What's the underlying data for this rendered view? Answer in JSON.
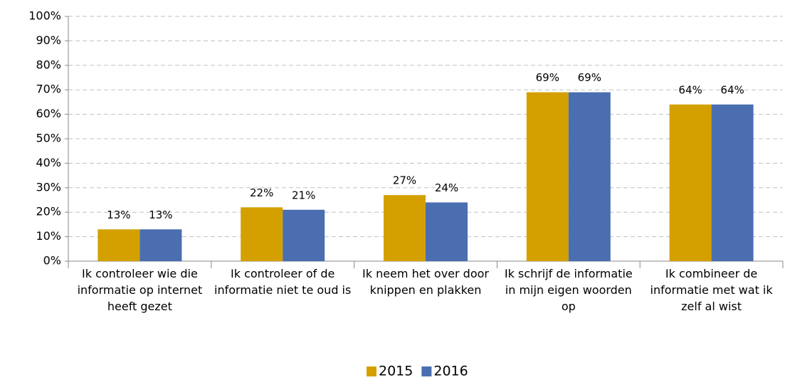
{
  "chart_data": {
    "type": "bar",
    "categories": [
      "Ik controleer wie die informatie op internet heeft gezet",
      "Ik controleer of de informatie niet te oud is",
      "Ik neem het over door knippen en plakken",
      "Ik schrijf de informatie in mijn eigen woorden op",
      "Ik combineer de informatie met wat ik zelf al wist"
    ],
    "series": [
      {
        "name": "2015",
        "color": "#d4a000",
        "values": [
          13,
          22,
          27,
          69,
          64
        ],
        "value_labels": [
          "13%",
          "22%",
          "27%",
          "69%",
          "64%"
        ]
      },
      {
        "name": "2016",
        "color": "#4a6eb0",
        "values": [
          13,
          21,
          24,
          69,
          64
        ],
        "value_labels": [
          "13%",
          "21%",
          "24%",
          "69%",
          "64%"
        ]
      }
    ],
    "ylim": [
      0,
      100
    ],
    "yticks": [
      {
        "value": 0,
        "label": "0%"
      },
      {
        "value": 10,
        "label": "10%"
      },
      {
        "value": 20,
        "label": "20%"
      },
      {
        "value": 30,
        "label": "30%"
      },
      {
        "value": 40,
        "label": "40%"
      },
      {
        "value": 50,
        "label": "50%"
      },
      {
        "value": 60,
        "label": "60%"
      },
      {
        "value": 70,
        "label": "70%"
      },
      {
        "value": 80,
        "label": "80%"
      },
      {
        "value": 90,
        "label": "90%"
      },
      {
        "value": 100,
        "label": "100%"
      }
    ],
    "grid": true,
    "legend": "bottom"
  }
}
